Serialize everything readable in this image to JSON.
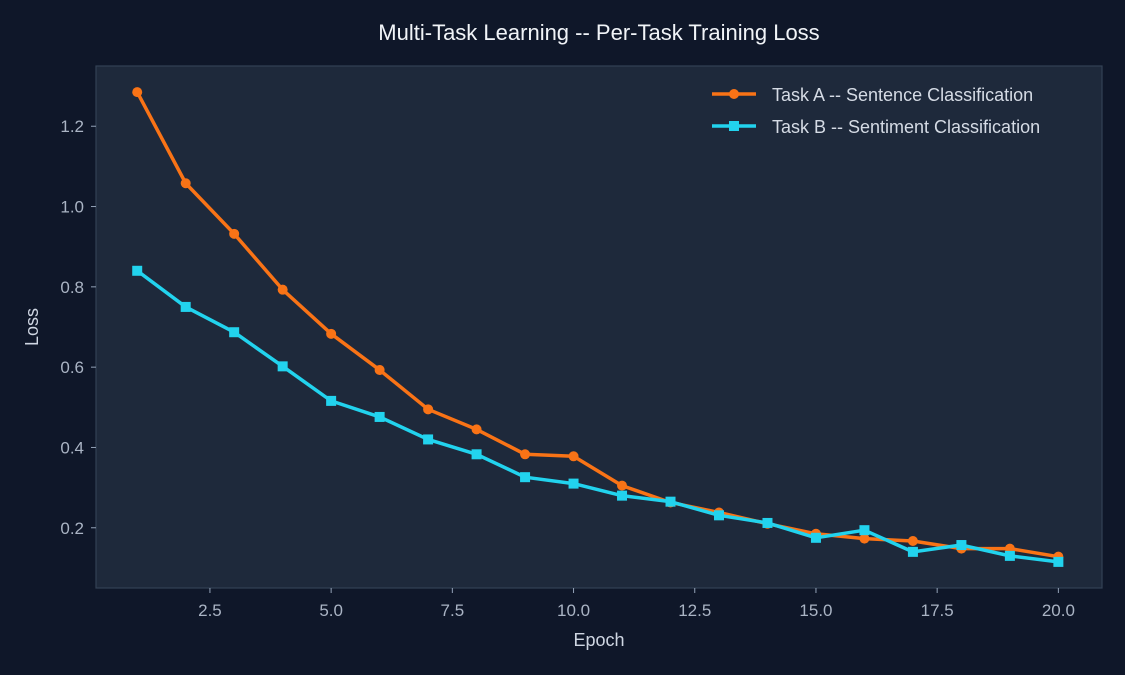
{
  "chart_data": {
    "type": "line",
    "title": "Multi-Task Learning -- Per-Task Training Loss",
    "xlabel": "Epoch",
    "ylabel": "Loss",
    "xlim": [
      0.15,
      20.9
    ],
    "ylim": [
      0.05,
      1.35
    ],
    "xticks": [
      2.5,
      5.0,
      7.5,
      10.0,
      12.5,
      15.0,
      17.5,
      20.0
    ],
    "xtick_labels": [
      "2.5",
      "5.0",
      "7.5",
      "10.0",
      "12.5",
      "15.0",
      "17.5",
      "20.0"
    ],
    "yticks": [
      0.2,
      0.4,
      0.6,
      0.8,
      1.0,
      1.2
    ],
    "ytick_labels": [
      "0.2",
      "0.4",
      "0.6",
      "0.8",
      "1.0",
      "1.2"
    ],
    "grid": false,
    "legend_position": "top-right",
    "x": [
      1,
      2,
      3,
      4,
      5,
      6,
      7,
      8,
      9,
      10,
      11,
      12,
      13,
      14,
      15,
      16,
      17,
      18,
      19,
      20
    ],
    "series": [
      {
        "name": "Task A -- Sentence Classification",
        "color": "#f97316",
        "marker": "circle",
        "values": [
          1.285,
          1.058,
          0.932,
          0.793,
          0.683,
          0.593,
          0.495,
          0.445,
          0.383,
          0.378,
          0.305,
          0.263,
          0.238,
          0.21,
          0.185,
          0.173,
          0.167,
          0.148,
          0.148,
          0.128
        ]
      },
      {
        "name": "Task B -- Sentiment Classification",
        "color": "#22d3ee",
        "marker": "square",
        "values": [
          0.84,
          0.75,
          0.687,
          0.602,
          0.516,
          0.476,
          0.42,
          0.383,
          0.326,
          0.31,
          0.28,
          0.265,
          0.231,
          0.212,
          0.175,
          0.194,
          0.14,
          0.157,
          0.13,
          0.115
        ]
      }
    ]
  }
}
